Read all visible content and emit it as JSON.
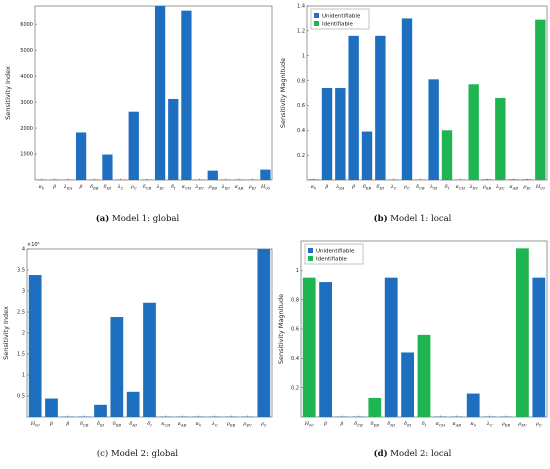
{
  "figure": {
    "panels": [
      {
        "tag": "(a)",
        "text": " Model 1: global"
      },
      {
        "tag": "(b)",
        "text": " Model 1: local"
      },
      {
        "tag": "(c)",
        "text": " Model 2: global"
      },
      {
        "tag": "(d)",
        "text": " Model 2: local"
      }
    ]
  },
  "colors": {
    "unidentifiable": "#1f6fc0",
    "identifiable": "#1fb552"
  },
  "chart_data": [
    {
      "type": "bar",
      "categories": [
        "κ_h",
        "β",
        "λ_{EA}",
        "β",
        "δ_{EB}",
        "δ_{HI}",
        "λ_C",
        "ρ_C",
        "δ_{CB}",
        "λ_{EI}",
        "δ_I",
        "κ_{CH}",
        "λ_{EV}",
        "ρ_{EB}",
        "λ_{EC}",
        "κ_{AB}",
        "ρ_{EI}",
        "H_{00}"
      ],
      "values": [
        0,
        0,
        0,
        1830,
        0,
        980,
        0,
        2630,
        0,
        6700,
        3120,
        6520,
        0,
        360,
        0,
        0,
        0,
        400
      ],
      "ylabel": "Sensitivity Index",
      "ylim": [
        0,
        6700
      ],
      "yticks": [
        1000,
        2000,
        3000,
        4000,
        5000,
        6000
      ],
      "ytick_labels": [
        "1000",
        "2000",
        "3000",
        "4000",
        "5000",
        "6000"
      ],
      "grid": false,
      "colors": []
    },
    {
      "type": "bar",
      "categories": [
        "κ_h",
        "β",
        "λ_{EA}",
        "β",
        "δ_{EB}",
        "δ_{HI}",
        "λ_C",
        "ρ_C",
        "δ_{CB}",
        "λ_{EI}",
        "δ_I",
        "κ_{CH}",
        "λ_{EV}",
        "ρ_{EB}",
        "λ_{EC}",
        "κ_{AB}",
        "ρ_{EI}",
        "H_{00}"
      ],
      "values": [
        0.005,
        0.74,
        0.74,
        1.16,
        0.39,
        1.16,
        0,
        1.3,
        0,
        0.81,
        0.4,
        0,
        0.77,
        0.005,
        0.66,
        0.005,
        0.005,
        1.29
      ],
      "status": [
        "u",
        "u",
        "u",
        "u",
        "u",
        "u",
        "u",
        "u",
        "u",
        "u",
        "i",
        "u",
        "i",
        "u",
        "i",
        "u",
        "u",
        "i"
      ],
      "ylabel": "Sensitivity Magnitude",
      "ylim": [
        0,
        1.4
      ],
      "yticks": [
        0.2,
        0.4,
        0.6,
        0.8,
        1,
        1.2,
        1.4
      ],
      "ytick_labels": [
        "0.2",
        "0.4",
        "0.6",
        "0.8",
        "1",
        "1.2",
        "1.4"
      ],
      "legend": [
        "Unidentifiable",
        "Identifiable"
      ],
      "legend_position": "top-left",
      "grid": false
    },
    {
      "type": "bar",
      "categories": [
        "H_{00}",
        "β",
        "β",
        "δ_{CB}",
        "δ_{EI}",
        "δ_{EB}",
        "δ_{HI}",
        "δ_I",
        "κ_{CH}",
        "κ_{AB}",
        "κ_h",
        "λ_C",
        "ρ_{EB}",
        "ρ_{EV}",
        "ρ_C"
      ],
      "values": [
        3.38,
        0.44,
        0.003,
        0.003,
        0.29,
        2.38,
        0.6,
        2.72,
        0.003,
        0.003,
        0.005,
        0.003,
        0.003,
        0.003,
        4.0
      ],
      "ylabel": "Sensitivity Index",
      "ylim": [
        0,
        4
      ],
      "yticks": [
        0.5,
        1,
        1.5,
        2,
        2.5,
        3,
        3.5,
        4
      ],
      "ytick_labels": [
        "0.5",
        "1",
        "1.5",
        "2",
        "2.5",
        "3",
        "3.5",
        "4"
      ],
      "exponent": "×10⁵",
      "grid": false
    },
    {
      "type": "bar",
      "categories": [
        "H_{00}",
        "β",
        "β",
        "δ_{CB}",
        "δ_{EB}",
        "δ_{HI}",
        "δ_{EI}",
        "δ_I",
        "κ_{CH}",
        "κ_{AB}",
        "κ_h",
        "λ_C",
        "ρ_{EB}",
        "ρ_{EV}",
        "ρ_C"
      ],
      "values": [
        0.95,
        0.92,
        0,
        0,
        0.13,
        0.95,
        0.44,
        0.56,
        0,
        0,
        0.16,
        0,
        0,
        1.15,
        0.95
      ],
      "status": [
        "i",
        "u",
        "u",
        "u",
        "i",
        "u",
        "u",
        "i",
        "u",
        "u",
        "u",
        "u",
        "u",
        "i",
        "u"
      ],
      "ylabel": "Sensitivity Magnitude",
      "ylim": [
        0,
        1.2
      ],
      "yticks": [
        0.2,
        0.4,
        0.6,
        0.8,
        1
      ],
      "ytick_labels": [
        "0.2",
        "0.4",
        "0.6",
        "0.8",
        "1"
      ],
      "legend": [
        "Unidentifiable",
        "Identifiable"
      ],
      "legend_position": "top-left",
      "grid": false
    }
  ]
}
